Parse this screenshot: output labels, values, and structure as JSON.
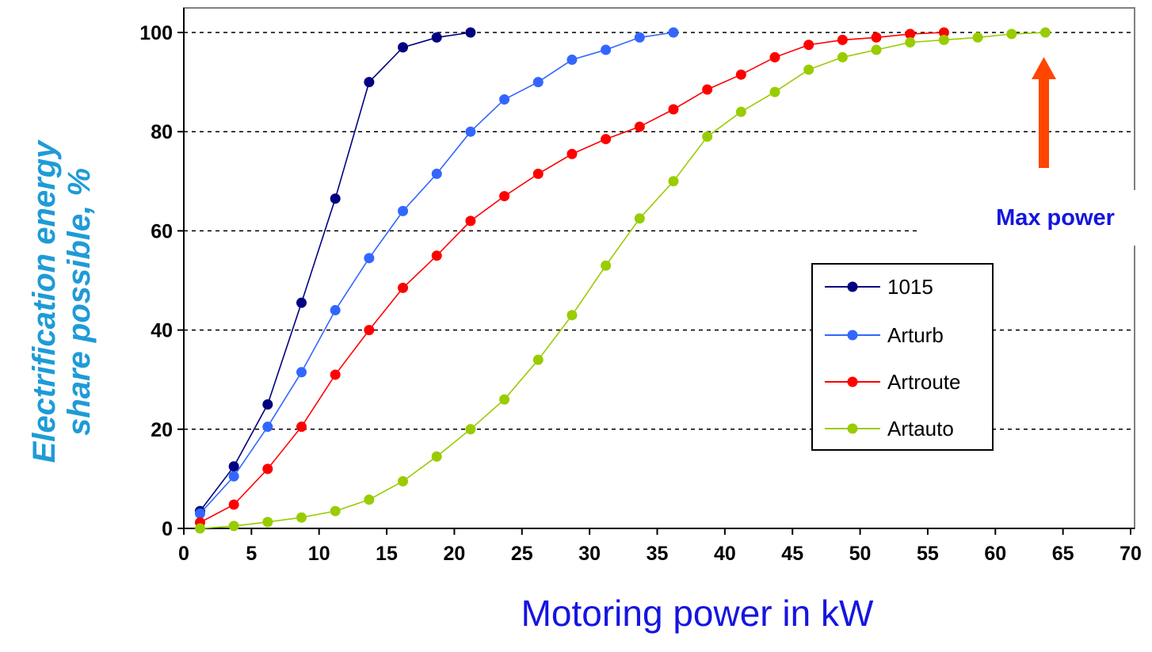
{
  "chart_data": {
    "type": "line",
    "xlabel": "Motoring power in kW",
    "ylabel": [
      "Electrification energy",
      "share possible, %"
    ],
    "xlim": [
      0,
      70
    ],
    "ylim": [
      0,
      100
    ],
    "x_ticks": [
      "0",
      "5",
      "10",
      "15",
      "20",
      "25",
      "30",
      "35",
      "40",
      "45",
      "50",
      "55",
      "60",
      "65",
      "70"
    ],
    "y_ticks": [
      "0",
      "20",
      "40",
      "60",
      "80",
      "100"
    ],
    "grid": "horizontal dashed",
    "legend_position": "right",
    "annotation": {
      "text": "Max power",
      "arrow": "up",
      "arrow_color": "#ff4500"
    },
    "colors": {
      "ylabel": "#1e9bd7",
      "xlabel": "#1515e0",
      "annotation": "#1515e0"
    },
    "series": [
      {
        "name": "1015",
        "color": "#000080",
        "x": [
          1.2,
          3.7,
          6.2,
          8.7,
          11.2,
          13.7,
          16.2,
          18.7,
          21.2
        ],
        "y": [
          3.5,
          12.5,
          25,
          45.5,
          66.5,
          90,
          97,
          99,
          100
        ]
      },
      {
        "name": "Arturb",
        "color": "#3366ff",
        "x": [
          1.2,
          3.7,
          6.2,
          8.7,
          11.2,
          13.7,
          16.2,
          18.7,
          21.2,
          23.7,
          26.2,
          28.7,
          31.2,
          33.7,
          36.2
        ],
        "y": [
          3.0,
          10.5,
          20.5,
          31.5,
          44,
          54.5,
          64,
          71.5,
          80,
          86.5,
          90,
          94.5,
          96.5,
          99,
          100
        ]
      },
      {
        "name": "Artroute",
        "color": "#ff0000",
        "x": [
          1.2,
          3.7,
          6.2,
          8.7,
          11.2,
          13.7,
          16.2,
          18.7,
          21.2,
          23.7,
          26.2,
          28.7,
          31.2,
          33.7,
          36.2,
          38.7,
          41.2,
          43.7,
          46.2,
          48.7,
          51.2,
          53.7,
          56.2
        ],
        "y": [
          1.2,
          4.8,
          12,
          20.5,
          31,
          40,
          48.5,
          55,
          62,
          67,
          71.5,
          75.5,
          78.5,
          81,
          84.5,
          88.5,
          91.5,
          95,
          97.5,
          98.5,
          99,
          99.7,
          100
        ]
      },
      {
        "name": "Artauto",
        "color": "#99cc00",
        "x": [
          1.2,
          3.7,
          6.2,
          8.7,
          11.2,
          13.7,
          16.2,
          18.7,
          21.2,
          23.7,
          26.2,
          28.7,
          31.2,
          33.7,
          36.2,
          38.7,
          41.2,
          43.7,
          46.2,
          48.7,
          51.2,
          53.7,
          56.2,
          58.7,
          61.2,
          63.7
        ],
        "y": [
          0,
          0.5,
          1.3,
          2.2,
          3.5,
          5.8,
          9.5,
          14.5,
          20,
          26,
          34,
          43,
          53,
          62.5,
          70,
          79,
          84,
          88,
          92.5,
          95,
          96.5,
          98,
          98.5,
          99,
          99.7,
          100
        ]
      }
    ]
  }
}
